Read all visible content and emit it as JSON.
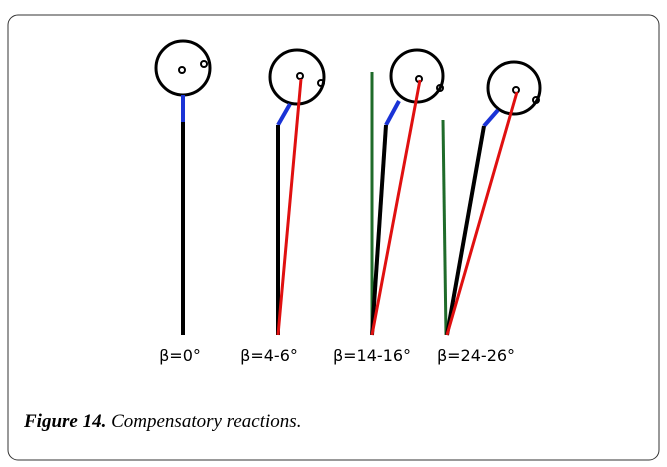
{
  "figure": {
    "labels": [
      "β=0°",
      "β=4-6°",
      "β=14-16°",
      "β=24-26°"
    ],
    "caption": {
      "number": "Figure 14.",
      "text": "Compensatory reactions."
    }
  }
}
